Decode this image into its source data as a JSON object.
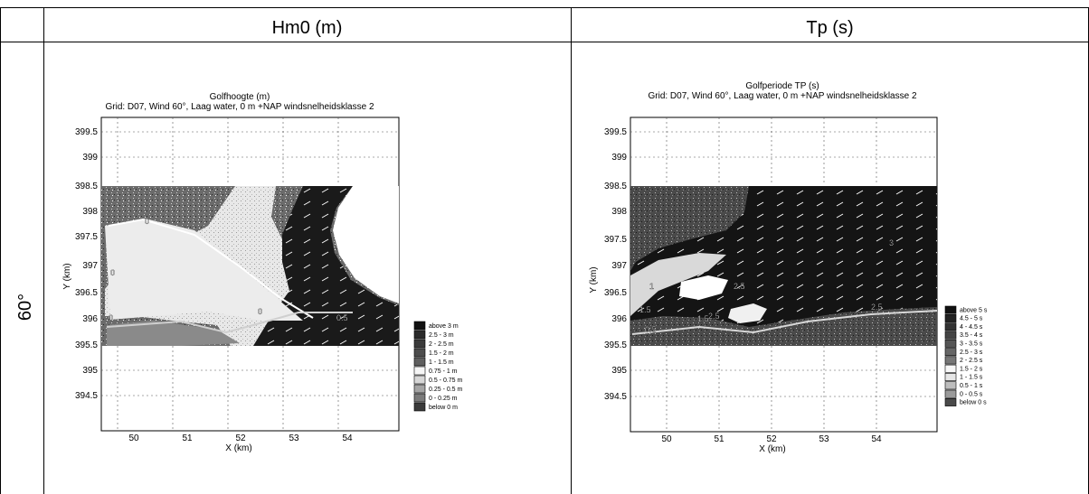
{
  "table": {
    "col_headers": [
      "Hm0 (m)",
      "Tp (s)"
    ],
    "row_label": "60°"
  },
  "panels": [
    {
      "title_line1": "Golfhoogte (m)",
      "title_line2": "Grid: D07, Wind 60°, Laag water, 0 m +NAP windsnelheidsklasse 2",
      "xlabel": "X (km)",
      "ylabel": "Y (km)",
      "x_ticks": [
        "50",
        "51",
        "52",
        "53",
        "54"
      ],
      "y_ticks": [
        "399.5",
        "399",
        "398.5",
        "398",
        "397.5",
        "397",
        "396.5",
        "396",
        "395.5",
        "395",
        "394.5"
      ],
      "contour_labels": [
        "0",
        "0",
        "0",
        "0",
        "0.5"
      ],
      "legend": [
        "above 3 m",
        "2.5 - 3 m",
        "2 - 2.5 m",
        "1.5 - 2 m",
        "1 - 1.5 m",
        "0.75 - 1 m",
        "0.5 - 0.75 m",
        "0.25 - 0.5 m",
        "0 - 0.25 m",
        "below 0 m"
      ],
      "legend_colors": [
        "#111111",
        "#2a2a2a",
        "#3b3b3b",
        "#4d4d4d",
        "#606060",
        "#f6f6f6",
        "#d7d7d7",
        "#a4a4a4",
        "#7a7a7a",
        "#3a3a3a"
      ]
    },
    {
      "title_line1": "Golfperiode TP (s)",
      "title_line2": "Grid: D07, Wind 60°, Laag water, 0 m +NAP windsnelheidsklasse 2",
      "xlabel": "X (km)",
      "ylabel": "Y (km)",
      "x_ticks": [
        "50",
        "51",
        "52",
        "53",
        "54"
      ],
      "y_ticks": [
        "399.5",
        "399",
        "398.5",
        "398",
        "397.5",
        "397",
        "396.5",
        "396",
        "395.5",
        "395",
        "394.5"
      ],
      "contour_labels": [
        "3",
        "2.5",
        "1.5",
        "2.5",
        "1",
        "0.5",
        "2.5",
        "1.5"
      ],
      "legend": [
        "above 5 s",
        "4.5 - 5 s",
        "4 - 4.5 s",
        "3.5 - 4 s",
        "3 - 3.5 s",
        "2.5 - 3 s",
        "2 - 2.5 s",
        "1.5 - 2 s",
        "1 - 1.5 s",
        "0.5 - 1 s",
        "0 - 0.5 s",
        "below 0 s"
      ],
      "legend_colors": [
        "#111111",
        "#222222",
        "#333333",
        "#444444",
        "#555555",
        "#666666",
        "#777777",
        "#f8f8f8",
        "#e6e6e6",
        "#bdbdbd",
        "#9a9a9a",
        "#4a4a4a"
      ]
    }
  ]
}
